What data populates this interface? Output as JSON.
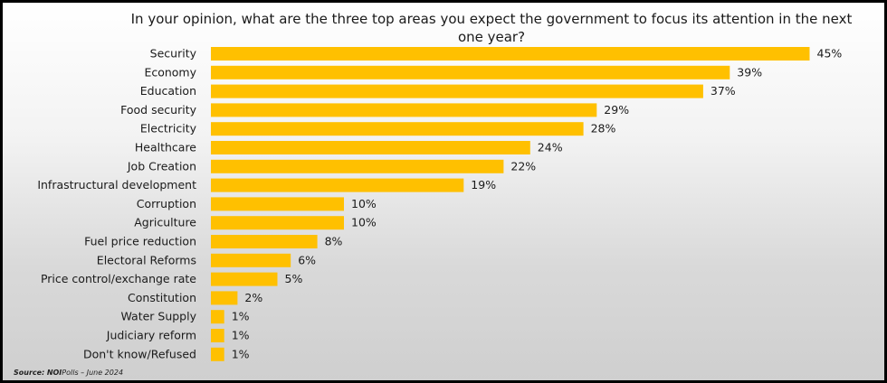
{
  "chart_data": {
    "type": "bar",
    "orientation": "horizontal",
    "title": "In your opinion, what are the three top areas you expect the government to focus its attention in the next one year?",
    "categories": [
      "Security",
      "Economy",
      "Education",
      "Food security",
      "Electricity",
      "Healthcare",
      "Job Creation",
      "Infrastructural development",
      "Corruption",
      "Agriculture",
      "Fuel price reduction",
      "Electoral Reforms",
      "Price control/exchange rate",
      "Constitution",
      "Water Supply",
      "Judiciary reform",
      "Don't know/Refused"
    ],
    "values": [
      45,
      39,
      37,
      29,
      28,
      24,
      22,
      19,
      10,
      10,
      8,
      6,
      5,
      2,
      1,
      1,
      1
    ],
    "value_labels": [
      "45%",
      "39%",
      "37%",
      "29%",
      "28%",
      "24%",
      "22%",
      "19%",
      "10%",
      "10%",
      "8%",
      "6%",
      "5%",
      "2%",
      "1%",
      "1%",
      "1%"
    ],
    "unit": "%",
    "bar_color": "#FFC000",
    "grid": false,
    "legend": "none"
  },
  "source": {
    "label": "Source:",
    "org": "NOI",
    "rest": "Polls – June 2024"
  }
}
